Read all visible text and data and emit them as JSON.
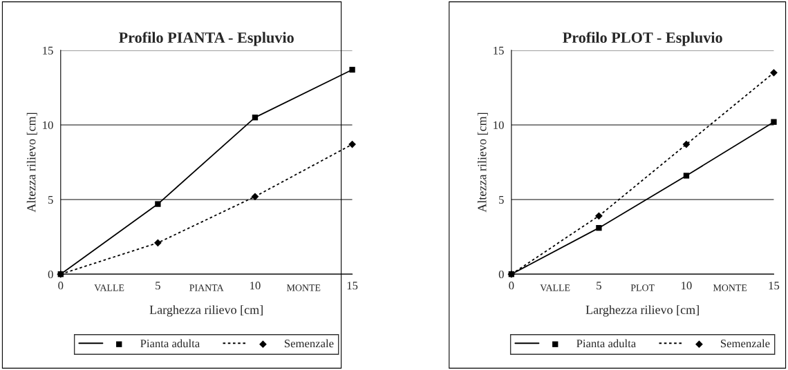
{
  "chart_data": [
    {
      "type": "line",
      "title": "Profilo PIANTA - Espluvio",
      "xlabel": "Larghezza rilievo [cm]",
      "ylabel": "Altezza rilievo [cm]",
      "x": [
        0,
        5,
        10,
        15
      ],
      "xlim": [
        0,
        15
      ],
      "xticks": [
        0,
        5,
        10,
        15
      ],
      "ylim": [
        0,
        15
      ],
      "yticks": [
        0,
        5,
        10,
        15
      ],
      "grid": "y",
      "legend": "bottom",
      "annotations": [
        "VALLE",
        "PIANTA",
        "MONTE"
      ],
      "series": [
        {
          "name": "Pianta adulta",
          "color": "#000000",
          "marker": "square",
          "line_style": "solid",
          "values": [
            0,
            4.7,
            10.5,
            13.7
          ]
        },
        {
          "name": "Semenzale",
          "color": "#000000",
          "marker": "diamond",
          "line_style": "dotted",
          "values": [
            0,
            2.1,
            5.2,
            8.7
          ]
        }
      ]
    },
    {
      "type": "line",
      "title": "Profilo PLOT - Espluvio",
      "xlabel": "Larghezza rilievo [cm]",
      "ylabel": "Altezza rilievo [cm]",
      "x": [
        0,
        5,
        10,
        15
      ],
      "xlim": [
        0,
        15
      ],
      "xticks": [
        0,
        5,
        10,
        15
      ],
      "ylim": [
        0,
        15
      ],
      "yticks": [
        0,
        5,
        10,
        15
      ],
      "grid": "y",
      "legend": "bottom",
      "annotations": [
        "VALLE",
        "PLOT",
        "MONTE"
      ],
      "series": [
        {
          "name": "Pianta adulta",
          "color": "#000000",
          "marker": "square",
          "line_style": "solid",
          "values": [
            0,
            3.1,
            6.6,
            10.2
          ]
        },
        {
          "name": "Semenzale",
          "color": "#000000",
          "marker": "diamond",
          "line_style": "dotted",
          "values": [
            0,
            3.9,
            8.7,
            13.5
          ]
        }
      ]
    }
  ]
}
